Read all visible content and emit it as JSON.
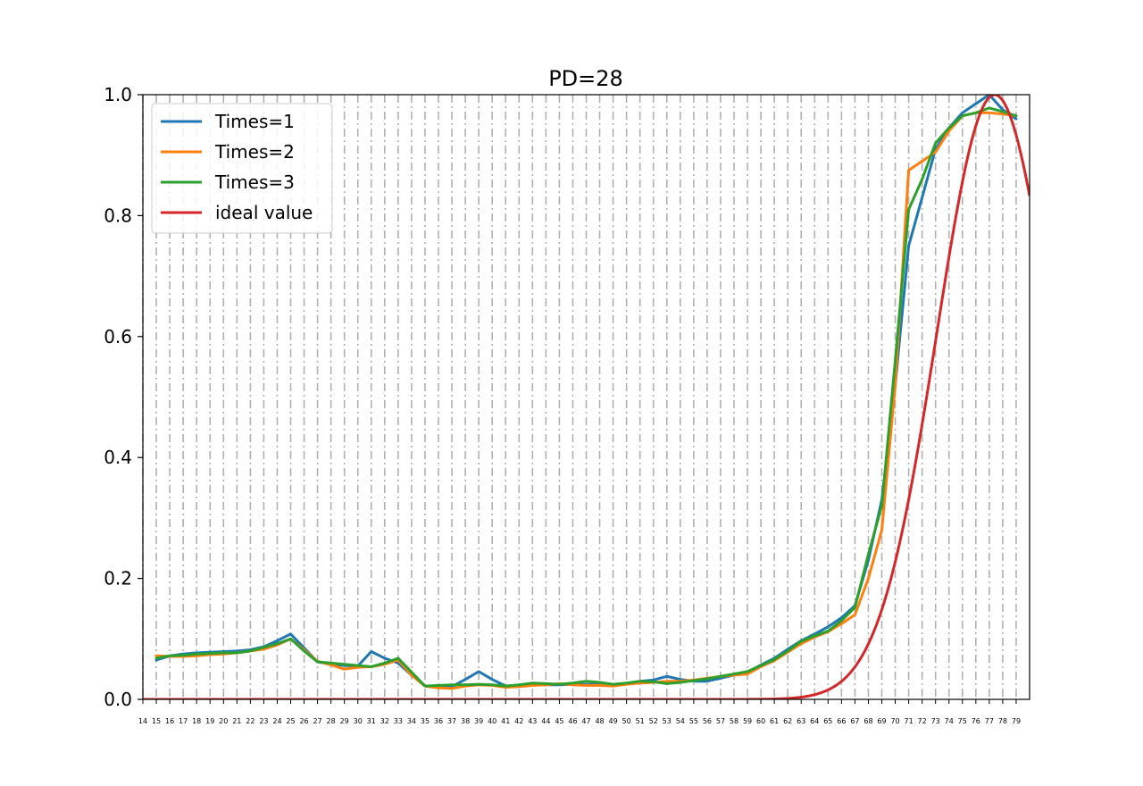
{
  "chart_data": {
    "type": "line",
    "title": "PD=28",
    "xlabel": "",
    "ylabel": "",
    "xlim": [
      14,
      80
    ],
    "ylim": [
      0,
      1.0
    ],
    "grid": {
      "x": true,
      "y": false,
      "style": "dash-dot",
      "color": "#b0b0b0"
    },
    "legend_position": "upper-left",
    "x": [
      15,
      16,
      17,
      18,
      19,
      20,
      21,
      22,
      23,
      24,
      25,
      26,
      27,
      28,
      29,
      30,
      31,
      32,
      33,
      34,
      35,
      36,
      37,
      38,
      39,
      40,
      41,
      42,
      43,
      44,
      45,
      46,
      47,
      48,
      49,
      50,
      51,
      52,
      53,
      54,
      55,
      56,
      57,
      58,
      59,
      60,
      61,
      62,
      63,
      64,
      65,
      66,
      67,
      68,
      69,
      70,
      71,
      72,
      73,
      74,
      75,
      76,
      77,
      78,
      79
    ],
    "x_ticks": [
      14,
      15,
      16,
      17,
      18,
      19,
      20,
      21,
      22,
      23,
      24,
      25,
      26,
      27,
      28,
      29,
      30,
      31,
      32,
      33,
      34,
      35,
      36,
      37,
      38,
      39,
      40,
      41,
      42,
      43,
      44,
      45,
      46,
      47,
      48,
      49,
      50,
      51,
      52,
      53,
      54,
      55,
      56,
      57,
      58,
      59,
      60,
      61,
      62,
      63,
      64,
      65,
      66,
      67,
      68,
      69,
      70,
      71,
      72,
      73,
      74,
      75,
      76,
      77,
      78,
      79
    ],
    "y_ticks": [
      "0.0",
      "0.2",
      "0.4",
      "0.6",
      "0.8",
      "1.0"
    ],
    "y_tick_values": [
      0,
      0.2,
      0.4,
      0.6,
      0.8,
      1.0
    ],
    "series": [
      {
        "name": "Times=1",
        "color": "#1f77b4",
        "values": [
          0.065,
          0.072,
          0.075,
          0.077,
          0.078,
          0.079,
          0.08,
          0.082,
          0.087,
          0.097,
          0.108,
          0.085,
          0.062,
          0.058,
          0.056,
          0.055,
          0.079,
          0.068,
          0.06,
          0.04,
          0.022,
          0.022,
          0.021,
          0.033,
          0.046,
          0.033,
          0.022,
          0.023,
          0.025,
          0.024,
          0.024,
          0.025,
          0.025,
          0.025,
          0.024,
          0.025,
          0.03,
          0.032,
          0.038,
          0.033,
          0.03,
          0.03,
          0.035,
          0.04,
          0.045,
          0.057,
          0.068,
          0.083,
          0.097,
          0.108,
          0.12,
          0.135,
          0.155,
          0.23,
          0.33,
          0.52,
          0.75,
          0.83,
          0.91,
          0.945,
          0.97,
          0.985,
          1.0,
          0.975,
          0.96
        ]
      },
      {
        "name": "Times=2",
        "color": "#ff7f0e",
        "values": [
          0.072,
          0.071,
          0.071,
          0.072,
          0.074,
          0.075,
          0.077,
          0.08,
          0.083,
          0.09,
          0.1,
          0.082,
          0.063,
          0.057,
          0.05,
          0.053,
          0.054,
          0.058,
          0.065,
          0.04,
          0.022,
          0.019,
          0.018,
          0.022,
          0.024,
          0.023,
          0.02,
          0.021,
          0.023,
          0.024,
          0.026,
          0.024,
          0.023,
          0.023,
          0.022,
          0.025,
          0.027,
          0.028,
          0.03,
          0.03,
          0.032,
          0.035,
          0.038,
          0.04,
          0.042,
          0.054,
          0.064,
          0.078,
          0.092,
          0.103,
          0.112,
          0.125,
          0.14,
          0.2,
          0.28,
          0.52,
          0.875,
          0.89,
          0.905,
          0.94,
          0.965,
          0.97,
          0.97,
          0.968,
          0.965
        ]
      },
      {
        "name": "Times=3",
        "color": "#2ca02c",
        "values": [
          0.068,
          0.072,
          0.073,
          0.075,
          0.076,
          0.077,
          0.077,
          0.08,
          0.086,
          0.092,
          0.1,
          0.08,
          0.062,
          0.06,
          0.058,
          0.056,
          0.054,
          0.06,
          0.068,
          0.045,
          0.022,
          0.023,
          0.024,
          0.024,
          0.025,
          0.024,
          0.022,
          0.024,
          0.027,
          0.026,
          0.025,
          0.027,
          0.03,
          0.028,
          0.025,
          0.027,
          0.03,
          0.029,
          0.026,
          0.028,
          0.031,
          0.034,
          0.038,
          0.042,
          0.046,
          0.056,
          0.066,
          0.08,
          0.096,
          0.105,
          0.113,
          0.13,
          0.152,
          0.24,
          0.32,
          0.56,
          0.81,
          0.86,
          0.92,
          0.945,
          0.965,
          0.97,
          0.978,
          0.972,
          0.965
        ]
      }
    ],
    "ideal": {
      "name": "ideal value",
      "color": "#d62728",
      "type": "gaussian",
      "mean": 77.4,
      "sigma": 4.3,
      "peak": 1.0,
      "x_range": [
        14,
        80
      ]
    }
  }
}
